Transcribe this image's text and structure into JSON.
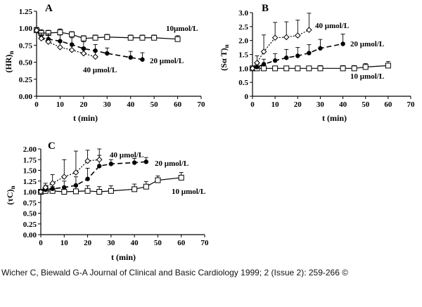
{
  "chart_data": [
    {
      "type": "line",
      "panel": "A",
      "xlabel": "t (min)",
      "ylabel": "(HR)n",
      "xlim": [
        0,
        70
      ],
      "ylim": [
        0,
        1.25
      ],
      "xticks": [
        "0",
        "10",
        "20",
        "30",
        "40",
        "50",
        "60",
        "70"
      ],
      "yticks": [
        "0.00",
        "0.25",
        "0.50",
        "0.75",
        "1.00",
        "1.25"
      ],
      "series": [
        {
          "name": "10 µmol/L",
          "marker": "square",
          "line": "solid",
          "x": [
            0,
            2,
            5,
            10,
            15,
            20,
            25,
            30,
            40,
            45,
            50,
            60
          ],
          "y": [
            0.97,
            0.93,
            0.93,
            0.94,
            0.91,
            0.85,
            0.86,
            0.87,
            0.86,
            0.86,
            0.86,
            0.84
          ],
          "err": [
            0.04,
            0.05,
            0.04,
            0.05,
            0.04,
            0.04,
            0.04,
            0.04,
            0.04,
            0.04,
            0.04,
            0.05
          ]
        },
        {
          "name": "20 µmol/L",
          "marker": "filled-circle",
          "line": "dashed",
          "x": [
            0,
            2,
            5,
            10,
            15,
            20,
            25,
            30,
            40,
            45
          ],
          "y": [
            0.97,
            0.86,
            0.84,
            0.81,
            0.76,
            0.7,
            0.67,
            0.63,
            0.57,
            0.54
          ],
          "err": [
            0.04,
            0.05,
            0.08,
            0.09,
            0.1,
            0.1,
            0.09,
            0.08,
            0.09,
            0.1
          ]
        },
        {
          "name": "40 µmol/L",
          "marker": "open-diamond",
          "line": "dotted",
          "x": [
            0,
            2,
            5,
            10,
            15,
            20,
            25
          ],
          "y": [
            0.97,
            0.85,
            0.8,
            0.72,
            0.68,
            0.63,
            0.58
          ],
          "err": [
            0.04,
            0.08,
            0.1,
            0.1,
            0.09,
            0.09,
            0.08
          ]
        }
      ],
      "annotations": [
        "10µmol/L",
        "20 µmol/L",
        "40 µmol/L"
      ]
    },
    {
      "type": "line",
      "panel": "B",
      "xlabel": "t (min)",
      "ylabel": "(Sα T)n",
      "xlim": [
        0,
        70
      ],
      "ylim": [
        0,
        3.0
      ],
      "xticks": [
        "0",
        "10",
        "20",
        "30",
        "40",
        "50",
        "60",
        "70"
      ],
      "yticks": [
        "0",
        "0.5",
        "1.0",
        "1.5",
        "2.0",
        "2.5",
        "3.0"
      ],
      "series": [
        {
          "name": "10 µmol/L",
          "marker": "square",
          "line": "solid",
          "x": [
            0,
            2,
            5,
            10,
            15,
            20,
            25,
            30,
            40,
            45,
            50,
            60
          ],
          "y": [
            1.0,
            1.0,
            1.0,
            1.0,
            1.0,
            1.0,
            1.0,
            1.0,
            1.0,
            1.0,
            1.05,
            1.1
          ],
          "err": [
            0.05,
            0.05,
            0.08,
            0.08,
            0.08,
            0.08,
            0.08,
            0.1,
            0.1,
            0.1,
            0.12,
            0.15
          ]
        },
        {
          "name": "20 µmol/L",
          "marker": "filled-circle",
          "line": "dashed",
          "x": [
            0,
            2,
            5,
            10,
            15,
            20,
            25,
            30,
            40
          ],
          "y": [
            1.0,
            1.05,
            1.15,
            1.28,
            1.38,
            1.45,
            1.55,
            1.72,
            1.88
          ],
          "err": [
            0.05,
            0.1,
            0.18,
            0.25,
            0.3,
            0.3,
            0.3,
            0.32,
            0.35
          ]
        },
        {
          "name": "40 µmol/L",
          "marker": "open-diamond",
          "line": "dotted",
          "x": [
            0,
            2,
            5,
            10,
            15,
            20,
            25
          ],
          "y": [
            1.0,
            1.2,
            1.6,
            2.1,
            2.12,
            2.18,
            2.38
          ],
          "err": [
            0.05,
            0.25,
            0.6,
            0.55,
            0.55,
            0.55,
            0.6
          ]
        }
      ],
      "annotations": [
        "10 µmol/L",
        "20 µmol/L",
        "40 µmol/L"
      ]
    },
    {
      "type": "line",
      "panel": "C",
      "xlabel": "t (min)",
      "ylabel": "(τC)n",
      "xlim": [
        0,
        70
      ],
      "ylim": [
        0,
        2.0
      ],
      "xticks": [
        "0",
        "10",
        "20",
        "30",
        "40",
        "50",
        "60",
        "70"
      ],
      "yticks": [
        "0.00",
        "0.25",
        "0.50",
        "0.75",
        "1.00",
        "1.25",
        "1.50",
        "1.75",
        "2.00"
      ],
      "series": [
        {
          "name": "10 µmol/L",
          "marker": "square",
          "line": "solid",
          "x": [
            0,
            2,
            5,
            10,
            15,
            20,
            25,
            30,
            40,
            45,
            50,
            60
          ],
          "y": [
            1.0,
            1.02,
            1.02,
            1.0,
            1.01,
            1.02,
            1.0,
            1.02,
            1.06,
            1.12,
            1.27,
            1.33
          ],
          "err": [
            0.05,
            0.08,
            0.1,
            0.12,
            0.12,
            0.12,
            0.12,
            0.12,
            0.12,
            0.12,
            0.1,
            0.12
          ]
        },
        {
          "name": "20 µmol/L",
          "marker": "filled-circle",
          "line": "dashed",
          "x": [
            0,
            2,
            5,
            10,
            15,
            20,
            25,
            30,
            40,
            45
          ],
          "y": [
            1.0,
            1.05,
            1.07,
            1.1,
            1.15,
            1.3,
            1.6,
            1.65,
            1.68,
            1.7
          ],
          "err": [
            0.05,
            0.1,
            0.12,
            0.15,
            0.2,
            0.25,
            0.25,
            0.1,
            0.1,
            0.1
          ]
        },
        {
          "name": "40 µmol/L",
          "marker": "open-diamond",
          "line": "dotted",
          "x": [
            0,
            2,
            5,
            10,
            15,
            20,
            25
          ],
          "y": [
            1.0,
            1.1,
            1.2,
            1.35,
            1.45,
            1.72,
            1.75
          ],
          "err": [
            0.05,
            0.1,
            0.2,
            0.4,
            0.5,
            0.25,
            0.25
          ]
        }
      ],
      "annotations": [
        "10 µmol/L",
        "20 µmol/L",
        "40 µmol/L"
      ]
    }
  ],
  "caption": "Wicher C, Biewald G-A Journal of Clinical and Basic Cardiology 1999; 2 (Issue 2): 259-266 ©"
}
